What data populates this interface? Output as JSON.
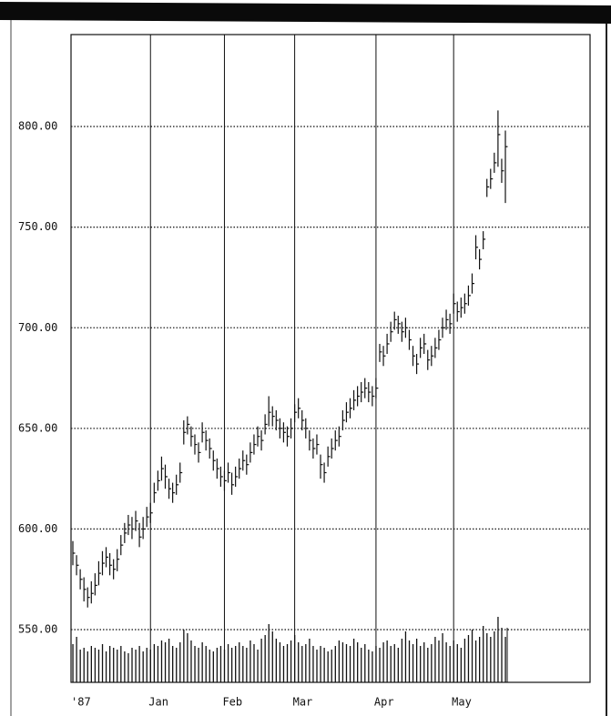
{
  "chart_data": {
    "type": "ohlc",
    "categories": [
      "'87",
      null,
      null,
      null,
      null,
      null,
      null,
      null,
      null,
      null,
      null,
      null,
      null,
      null,
      null,
      null,
      null,
      null,
      null,
      null,
      null,
      "Jan",
      null,
      null,
      null,
      null,
      null,
      null,
      null,
      null,
      null,
      null,
      null,
      null,
      null,
      null,
      null,
      null,
      null,
      null,
      null,
      "Feb",
      null,
      null,
      null,
      null,
      null,
      null,
      null,
      null,
      null,
      null,
      null,
      null,
      null,
      null,
      null,
      null,
      null,
      null,
      "Mar",
      null,
      null,
      null,
      null,
      null,
      null,
      null,
      null,
      null,
      null,
      null,
      null,
      null,
      null,
      null,
      null,
      null,
      null,
      null,
      null,
      null,
      "Apr",
      null,
      null,
      null,
      null,
      null,
      null,
      null,
      null,
      null,
      null,
      null,
      null,
      null,
      null,
      null,
      null,
      null,
      null,
      null,
      null,
      "May",
      null,
      null,
      null,
      null,
      null,
      null,
      null,
      null,
      null,
      null,
      null,
      null,
      null,
      null
    ],
    "high": [
      594,
      587,
      580,
      576,
      571,
      574,
      578,
      584,
      589,
      591,
      588,
      585,
      590,
      597,
      603,
      607,
      606,
      609,
      603,
      606,
      611,
      613,
      623,
      629,
      636,
      632,
      625,
      623,
      627,
      633,
      654,
      656,
      651,
      647,
      643,
      653,
      649,
      645,
      639,
      635,
      631,
      629,
      633,
      628,
      631,
      635,
      639,
      637,
      643,
      647,
      651,
      649,
      657,
      666,
      661,
      659,
      655,
      653,
      651,
      655,
      662,
      665,
      659,
      655,
      649,
      645,
      647,
      637,
      633,
      641,
      645,
      649,
      651,
      659,
      663,
      665,
      669,
      671,
      673,
      675,
      673,
      671,
      675,
      692,
      691,
      697,
      703,
      708,
      706,
      703,
      705,
      699,
      691,
      687,
      695,
      697,
      689,
      691,
      695,
      699,
      705,
      709,
      707,
      717,
      713,
      715,
      717,
      721,
      727,
      746,
      739,
      748,
      774,
      779,
      787,
      808,
      784,
      798
    ],
    "low": [
      582,
      577,
      570,
      564,
      561,
      563,
      567,
      572,
      577,
      581,
      577,
      575,
      579,
      587,
      593,
      597,
      595,
      599,
      591,
      595,
      601,
      603,
      613,
      619,
      624,
      620,
      615,
      613,
      617,
      623,
      642,
      647,
      641,
      637,
      633,
      643,
      639,
      635,
      629,
      625,
      621,
      619,
      623,
      617,
      621,
      625,
      629,
      627,
      633,
      637,
      641,
      639,
      647,
      651,
      651,
      649,
      645,
      643,
      641,
      645,
      653,
      655,
      649,
      645,
      639,
      635,
      637,
      625,
      623,
      631,
      635,
      639,
      641,
      649,
      653,
      655,
      659,
      661,
      663,
      665,
      663,
      661,
      665,
      683,
      681,
      687,
      693,
      699,
      697,
      693,
      695,
      689,
      681,
      677,
      685,
      687,
      679,
      681,
      685,
      689,
      695,
      699,
      697,
      707,
      703,
      705,
      707,
      711,
      717,
      734,
      729,
      739,
      765,
      769,
      777,
      780,
      772,
      762
    ],
    "close": [
      588,
      582,
      575,
      570,
      566,
      568,
      572,
      578,
      583,
      586,
      582,
      580,
      585,
      592,
      598,
      602,
      600,
      604,
      596,
      600,
      606,
      608,
      618,
      624,
      630,
      626,
      620,
      618,
      622,
      628,
      648,
      652,
      646,
      642,
      638,
      648,
      644,
      640,
      634,
      630,
      626,
      624,
      628,
      622,
      626,
      630,
      634,
      632,
      638,
      642,
      646,
      644,
      652,
      658,
      656,
      654,
      650,
      648,
      646,
      650,
      658,
      660,
      654,
      650,
      644,
      640,
      642,
      632,
      628,
      636,
      640,
      644,
      646,
      654,
      658,
      660,
      664,
      666,
      668,
      670,
      668,
      666,
      670,
      688,
      686,
      692,
      698,
      704,
      702,
      698,
      700,
      694,
      686,
      682,
      690,
      692,
      684,
      686,
      690,
      694,
      700,
      704,
      702,
      712,
      708,
      710,
      712,
      716,
      722,
      740,
      734,
      744,
      770,
      774,
      782,
      796,
      778,
      790
    ],
    "volume": [
      42,
      50,
      36,
      38,
      34,
      40,
      38,
      36,
      42,
      34,
      40,
      38,
      36,
      40,
      34,
      32,
      38,
      36,
      40,
      34,
      38,
      36,
      42,
      40,
      46,
      44,
      48,
      40,
      38,
      44,
      58,
      54,
      46,
      40,
      38,
      44,
      40,
      36,
      34,
      38,
      40,
      36,
      42,
      38,
      40,
      44,
      40,
      38,
      46,
      42,
      36,
      48,
      52,
      64,
      56,
      48,
      44,
      40,
      42,
      46,
      52,
      44,
      40,
      42,
      48,
      40,
      36,
      40,
      38,
      34,
      36,
      40,
      46,
      44,
      42,
      40,
      48,
      44,
      38,
      42,
      36,
      34,
      40,
      38,
      44,
      46,
      40,
      42,
      38,
      48,
      56,
      46,
      42,
      48,
      40,
      44,
      38,
      42,
      50,
      46,
      54,
      44,
      40,
      46,
      42,
      38,
      48,
      52,
      58,
      46,
      50,
      62,
      54,
      50,
      56,
      72,
      60,
      50
    ],
    "volume_lim": [
      0,
      100
    ],
    "ylim": [
      523.8,
      845.7
    ],
    "yticks": [
      {
        "value": 550,
        "label": "550.00"
      },
      {
        "value": 600,
        "label": "600.00"
      },
      {
        "value": 650,
        "label": "650.00"
      },
      {
        "value": 700,
        "label": "700.00"
      },
      {
        "value": 750,
        "label": "750.00"
      },
      {
        "value": 800,
        "label": "800.00"
      }
    ],
    "grid": true,
    "color": "#111"
  }
}
